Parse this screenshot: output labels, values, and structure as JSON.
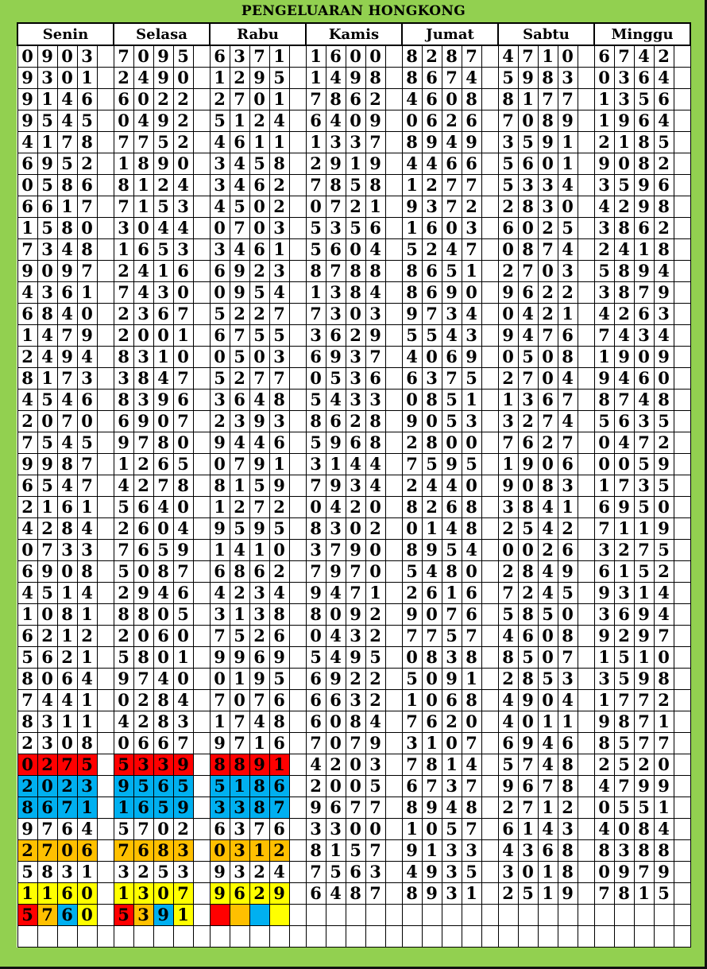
{
  "title": "PENGELUARAN HONGKONG",
  "palette": {
    "R": "#ff0000",
    "B": "#00b0f0",
    "O": "#ffc000",
    "Y": "#ffff00",
    "W": "#ffffff",
    "green": "#92d050"
  },
  "days": [
    {
      "name": "Senin",
      "rows": [
        "0903",
        "9301",
        "9146",
        "9545",
        "4178",
        "6952",
        "0586",
        "6617",
        "1580",
        "7348",
        "9097",
        "4361",
        "6840",
        "1479",
        "2494",
        "8173",
        "4546",
        "2070",
        "7545",
        "9987",
        "6547",
        "2161",
        "4284",
        "0733",
        "6908",
        "4514",
        "1081",
        "6212",
        "5621",
        "8064",
        "7441",
        "8311",
        "2308",
        "0275",
        "2023",
        "8671",
        "9764",
        "2706",
        "5831",
        "1160",
        "5760"
      ],
      "row_colors": {
        "33": "RRRR",
        "34": "BBBB",
        "35": "BBBB",
        "37": "OOOO",
        "39": "YYYY",
        "40": "ROBY"
      }
    },
    {
      "name": "Selasa",
      "rows": [
        "7095",
        "2490",
        "6022",
        "0492",
        "7752",
        "1890",
        "8124",
        "7153",
        "3044",
        "1653",
        "2416",
        "7430",
        "2367",
        "2001",
        "8310",
        "3847",
        "8396",
        "6907",
        "9780",
        "1265",
        "4278",
        "5640",
        "2604",
        "7659",
        "5087",
        "2946",
        "8805",
        "2060",
        "5801",
        "9740",
        "0284",
        "4283",
        "0667",
        "5339",
        "9565",
        "1659",
        "5702",
        "7683",
        "3253",
        "1307",
        "5391"
      ],
      "row_colors": {
        "33": "RRRR",
        "34": "BBBB",
        "35": "BBBB",
        "37": "OOOO",
        "39": "YYYY",
        "40": "ROBY"
      }
    },
    {
      "name": "Rabu",
      "rows": [
        "6371",
        "1295",
        "2701",
        "5124",
        "4611",
        "3458",
        "3462",
        "4502",
        "0703",
        "3461",
        "6923",
        "0954",
        "5227",
        "6755",
        "0503",
        "5277",
        "3648",
        "2393",
        "9446",
        "0791",
        "8159",
        "1272",
        "9595",
        "1410",
        "6862",
        "4234",
        "3138",
        "7526",
        "9969",
        "0195",
        "7076",
        "1748",
        "9716",
        "8891",
        "5186",
        "3387",
        "6376",
        "0312",
        "9324",
        "9629",
        ""
      ],
      "row_colors": {
        "33": "RRRR",
        "34": "BBBB",
        "35": "BBBB",
        "37": "OOOO",
        "39": "YYYY",
        "40": "ROBY"
      }
    },
    {
      "name": "Kamis",
      "rows": [
        "1600",
        "1498",
        "7862",
        "6409",
        "1337",
        "2919",
        "7858",
        "0721",
        "5356",
        "5604",
        "8788",
        "1384",
        "7303",
        "3629",
        "6937",
        "0536",
        "5433",
        "8628",
        "5968",
        "3144",
        "7934",
        "0420",
        "8302",
        "3790",
        "7970",
        "9471",
        "8092",
        "0432",
        "5495",
        "6922",
        "6632",
        "6084",
        "7079",
        "4203",
        "2005",
        "9677",
        "3300",
        "8157",
        "7563",
        "6487"
      ],
      "row_colors": {}
    },
    {
      "name": "Jumat",
      "rows": [
        "8287",
        "8674",
        "4608",
        "0626",
        "8949",
        "4466",
        "1277",
        "9372",
        "1603",
        "5247",
        "8651",
        "8690",
        "9734",
        "5543",
        "4069",
        "6375",
        "0851",
        "9053",
        "2800",
        "7595",
        "2440",
        "8268",
        "0148",
        "8954",
        "5480",
        "2616",
        "9076",
        "7757",
        "0838",
        "5091",
        "1068",
        "7620",
        "3107",
        "7814",
        "6737",
        "8948",
        "1057",
        "9133",
        "4935",
        "8931"
      ],
      "row_colors": {}
    },
    {
      "name": "Sabtu",
      "rows": [
        "4710",
        "5983",
        "8177",
        "7089",
        "3591",
        "5601",
        "5334",
        "2830",
        "6025",
        "0874",
        "2703",
        "9622",
        "0421",
        "9476",
        "0508",
        "2704",
        "1367",
        "3274",
        "7627",
        "1906",
        "9083",
        "3841",
        "2542",
        "0026",
        "2849",
        "7245",
        "5850",
        "4608",
        "8507",
        "2853",
        "4904",
        "4011",
        "6946",
        "5748",
        "9678",
        "2712",
        "6143",
        "4368",
        "3018",
        "2519"
      ],
      "row_colors": {}
    },
    {
      "name": "Minggu",
      "rows": [
        "6742",
        "0364",
        "1356",
        "1964",
        "2185",
        "9082",
        "3596",
        "4298",
        "3862",
        "2418",
        "5894",
        "3879",
        "4263",
        "7434",
        "1909",
        "9460",
        "8748",
        "5635",
        "0472",
        "0059",
        "1735",
        "6950",
        "7119",
        "3275",
        "6152",
        "9314",
        "3694",
        "9297",
        "1510",
        "3598",
        "1772",
        "9871",
        "8577",
        "2520",
        "4799",
        "0551",
        "4084",
        "8388",
        "0979",
        "7815"
      ],
      "row_colors": {}
    }
  ]
}
